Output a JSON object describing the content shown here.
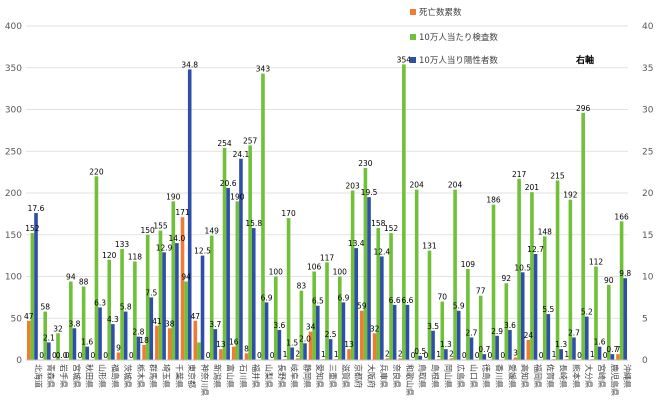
{
  "chart_data": {
    "type": "bar",
    "categories": [
      "北海道",
      "青森県",
      "岩手県",
      "宮城県",
      "秋田県",
      "山形県",
      "福島県",
      "茨城県",
      "栃木県",
      "群馬県",
      "埼玉県",
      "千葉県",
      "東京都",
      "神奈川県",
      "新潟県",
      "富山県",
      "石川県",
      "福井県",
      "山梨県",
      "長野県",
      "岐阜県",
      "静岡県",
      "愛知県",
      "三重県",
      "滋賀県",
      "京都府",
      "大阪府",
      "兵庫県",
      "奈良県",
      "和歌山県",
      "鳥取県",
      "島根県",
      "岡山県",
      "広島県",
      "山口県",
      "徳島県",
      "香川県",
      "愛媛県",
      "高知県",
      "福岡県",
      "佐賀県",
      "長崎県",
      "熊本県",
      "大分県",
      "宮崎県",
      "鹿児島県",
      "沖縄県"
    ],
    "series": [
      {
        "name": "死亡数累数",
        "axis": "left",
        "color": "#ED7D31",
        "values": [
          47,
          0,
          0,
          0,
          0,
          0,
          0,
          9,
          0,
          18,
          41,
          38,
          171,
          47,
          0,
          13,
          16,
          8,
          0,
          0,
          1,
          2,
          34,
          1,
          1,
          13,
          59,
          32,
          2,
          2,
          0,
          0,
          1,
          2,
          0,
          0,
          0,
          0,
          3,
          24,
          0,
          1,
          1,
          0,
          1,
          0,
          7
        ],
        "labels": [
          "47",
          "0",
          "0",
          "0",
          "0",
          "0",
          "0",
          "9",
          "0",
          "18",
          "41",
          "38",
          "171",
          "47",
          "0",
          "13",
          "16",
          "8",
          "0",
          "0",
          "1",
          "2",
          "34",
          "1",
          "1",
          "13",
          "59",
          "32",
          "2",
          "2",
          "0",
          "0",
          "1",
          "2",
          "0",
          "0",
          "0",
          "0",
          "3",
          "24",
          "0",
          "1",
          "1",
          "0",
          "1",
          "0",
          "7"
        ]
      },
      {
        "name": "10万人当たり検査数",
        "axis": "left",
        "color": "#70C03A",
        "values": [
          152,
          58,
          32,
          94,
          88,
          220,
          120,
          133,
          118,
          150,
          155,
          190,
          94,
          21,
          149,
          254,
          190,
          257,
          343,
          100,
          170,
          83,
          106,
          117,
          100,
          203,
          230,
          158,
          152,
          354,
          204,
          131,
          70,
          204,
          109,
          77,
          186,
          92,
          217,
          201,
          148,
          215,
          192,
          296,
          112,
          90,
          166
        ],
        "labels": [
          "152",
          "58",
          "32",
          "94",
          "88",
          "220",
          "120",
          "133",
          "118",
          "150",
          "155",
          "190",
          "94",
          "",
          "149",
          "254",
          "190",
          "257",
          "343",
          "100",
          "170",
          "83",
          "106",
          "117",
          "100",
          "203",
          "230",
          "158",
          "152",
          "354",
          "204",
          "131",
          "70",
          "204",
          "109",
          "77",
          "186",
          "92",
          "217",
          "201",
          "148",
          "215",
          "192",
          "296",
          "112",
          "90",
          "166"
        ]
      },
      {
        "name": "10万人当り陽性者数",
        "axis": "right",
        "color": "#2E4FA8",
        "values": [
          17.6,
          2.1,
          0.0,
          3.8,
          1.6,
          6.3,
          4.3,
          5.8,
          2.8,
          7.5,
          12.9,
          14.0,
          34.8,
          12.5,
          3.7,
          20.6,
          24.1,
          15.8,
          6.9,
          3.6,
          1.5,
          2.0,
          6.5,
          2.5,
          6.9,
          13.4,
          19.5,
          12.4,
          6.6,
          6.6,
          0.5,
          3.5,
          1.3,
          5.9,
          2.7,
          0.7,
          2.9,
          3.6,
          10.5,
          12.7,
          5.5,
          1.3,
          2.7,
          5.2,
          1.6,
          0.7,
          9.8
        ],
        "labels": [
          "17.6",
          "2.1",
          "0.0",
          "3.8",
          "1.6",
          "6.3",
          "4.3",
          "5.8",
          "2.8",
          "7.5",
          "12.9",
          "14.0",
          "34.8",
          "12.5",
          "3.7",
          "20.6",
          "24.1",
          "15.8",
          "6.9",
          "3.6",
          "1.5",
          "2.0",
          "6.5",
          "2.5",
          "6.9",
          "13.4",
          "19.5",
          "12.4",
          "6.6",
          "6.6",
          "0.5",
          "3.5",
          "1.3",
          "5.9",
          "2.7",
          "0.7",
          "2.9",
          "3.6",
          "10.5",
          "12.7",
          "5.5",
          "1.3",
          "2.7",
          "5.2",
          "1.6",
          "0.7",
          "9.8"
        ]
      }
    ],
    "ylim": [
      0,
      400
    ],
    "y2lim": [
      0,
      40
    ],
    "yticks": [
      "0",
      "50",
      "100",
      "150",
      "200",
      "250",
      "300",
      "350",
      "400"
    ],
    "y2ticks": [
      "0",
      "5",
      "10",
      "15",
      "20",
      "25",
      "30",
      "35",
      "40"
    ],
    "legend_note": "右軸",
    "legend_position": "top-right",
    "grid": true
  }
}
